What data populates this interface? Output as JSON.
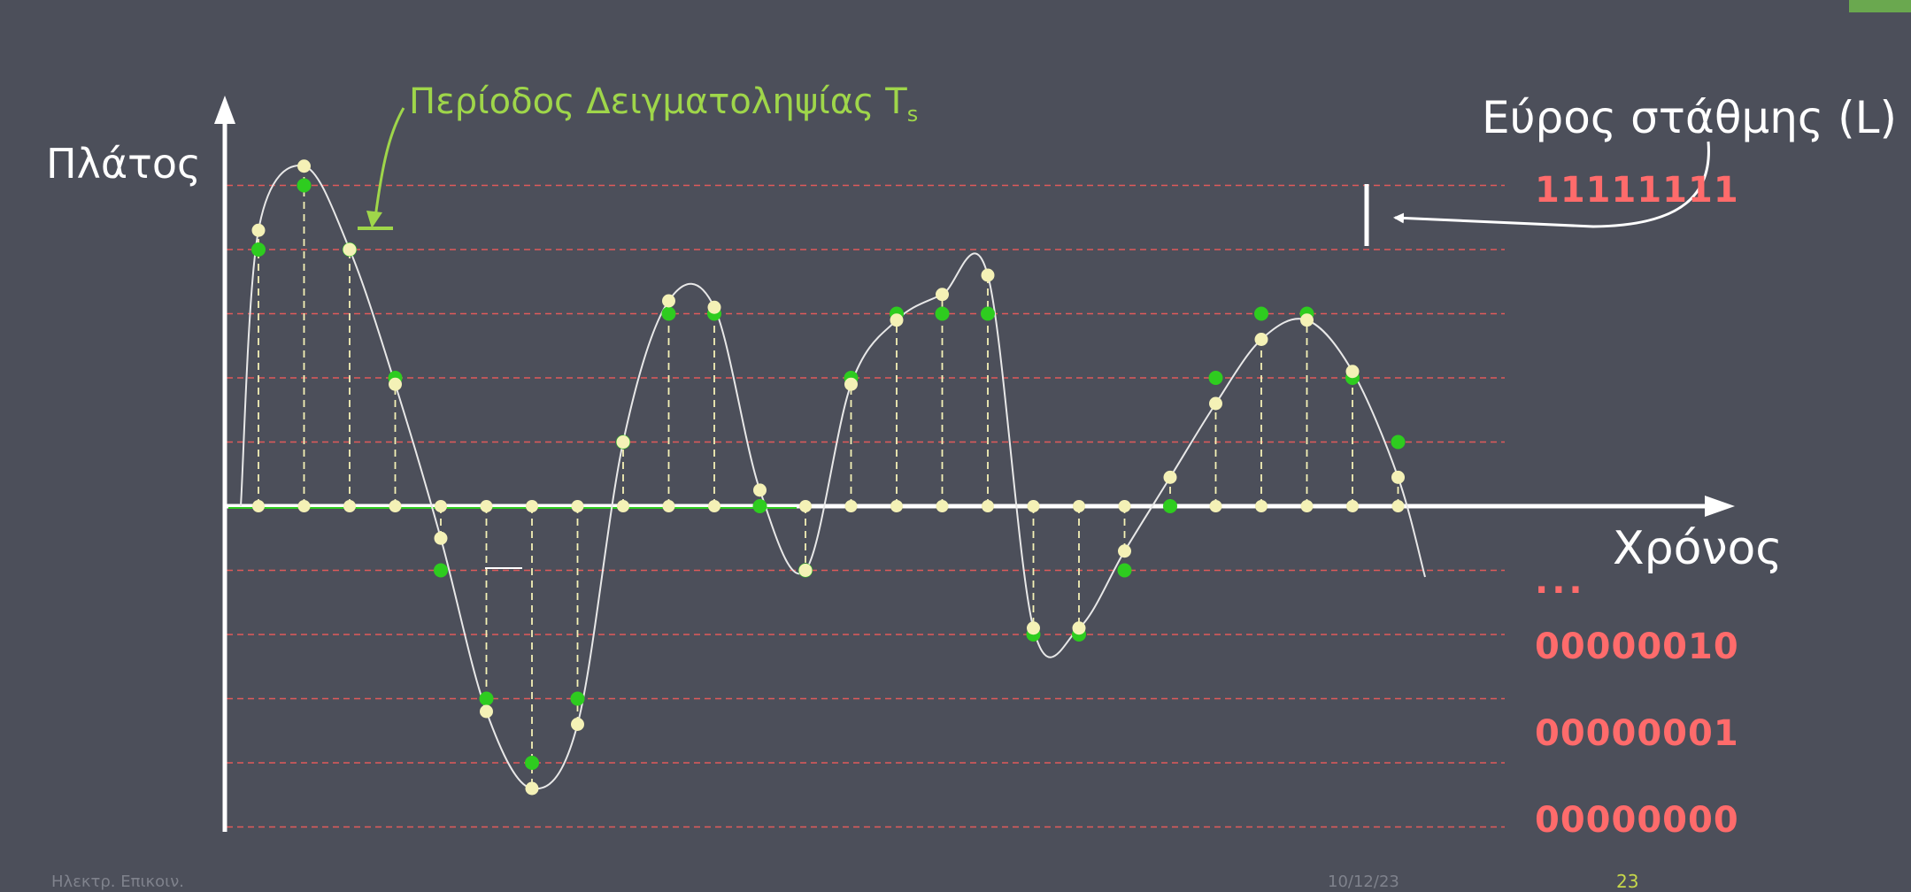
{
  "labels": {
    "y_axis": "Πλάτος",
    "x_axis": "Χρόνος",
    "sampling_period": "Περίοδος Δειγματοληψίας T",
    "sampling_period_sub": "s",
    "level_width": "Εύρος στάθμης (L)"
  },
  "codes": {
    "top": "11111111",
    "ellipsis": "...",
    "level_2": "00000010",
    "level_1": "00000001",
    "level_0": "00000000"
  },
  "footer": {
    "left": "Ηλεκτρ. Επικοιν.",
    "date": "10/12/23",
    "page": "23"
  },
  "colors": {
    "background": "#4c4f5a",
    "signal": "#e8e8e8",
    "sample_point": "#f4f1b6",
    "quantized_point": "#2ecc1f",
    "level_line": "#e05a5a",
    "accent": "#9fd64a"
  },
  "diagram": {
    "levels": [
      -5,
      -4,
      -3,
      -2,
      -1,
      1,
      2,
      3,
      4,
      5
    ],
    "samples": [
      {
        "t": 1,
        "sample": 4.3,
        "quantized": 4
      },
      {
        "t": 2,
        "sample": 5.3,
        "quantized": 5
      },
      {
        "t": 3,
        "sample": 4,
        "quantized": 4
      },
      {
        "t": 4,
        "sample": 1.9,
        "quantized": 2
      },
      {
        "t": 5,
        "sample": -0.5,
        "quantized": -1
      },
      {
        "t": 6,
        "sample": -3.2,
        "quantized": -3
      },
      {
        "t": 7,
        "sample": -4.4,
        "quantized": -4
      },
      {
        "t": 8,
        "sample": -3.4,
        "quantized": -3
      },
      {
        "t": 9,
        "sample": 1,
        "quantized": 1
      },
      {
        "t": 10,
        "sample": 3.2,
        "quantized": 3
      },
      {
        "t": 11,
        "sample": 3.1,
        "quantized": 3
      },
      {
        "t": 12,
        "sample": 0.25,
        "quantized": 0
      },
      {
        "t": 13,
        "sample": -1,
        "quantized": -1
      },
      {
        "t": 14,
        "sample": 1.9,
        "quantized": 2
      },
      {
        "t": 15,
        "sample": 2.9,
        "quantized": 3
      },
      {
        "t": 16,
        "sample": 3.3,
        "quantized": 3
      },
      {
        "t": 17,
        "sample": 3.6,
        "quantized": 3
      },
      {
        "t": 18,
        "sample": -1.9,
        "quantized": -2
      },
      {
        "t": 19,
        "sample": -1.9,
        "quantized": -2
      },
      {
        "t": 20,
        "sample": -0.7,
        "quantized": -1
      },
      {
        "t": 21,
        "sample": 0.45,
        "quantized": 0
      },
      {
        "t": 22,
        "sample": 1.6,
        "quantized": 2
      },
      {
        "t": 23,
        "sample": 2.6,
        "quantized": 3
      },
      {
        "t": 24,
        "sample": 2.9,
        "quantized": 3
      },
      {
        "t": 25,
        "sample": 2.1,
        "quantized": 2
      },
      {
        "t": 26,
        "sample": 0.45,
        "quantized": 1
      }
    ]
  }
}
